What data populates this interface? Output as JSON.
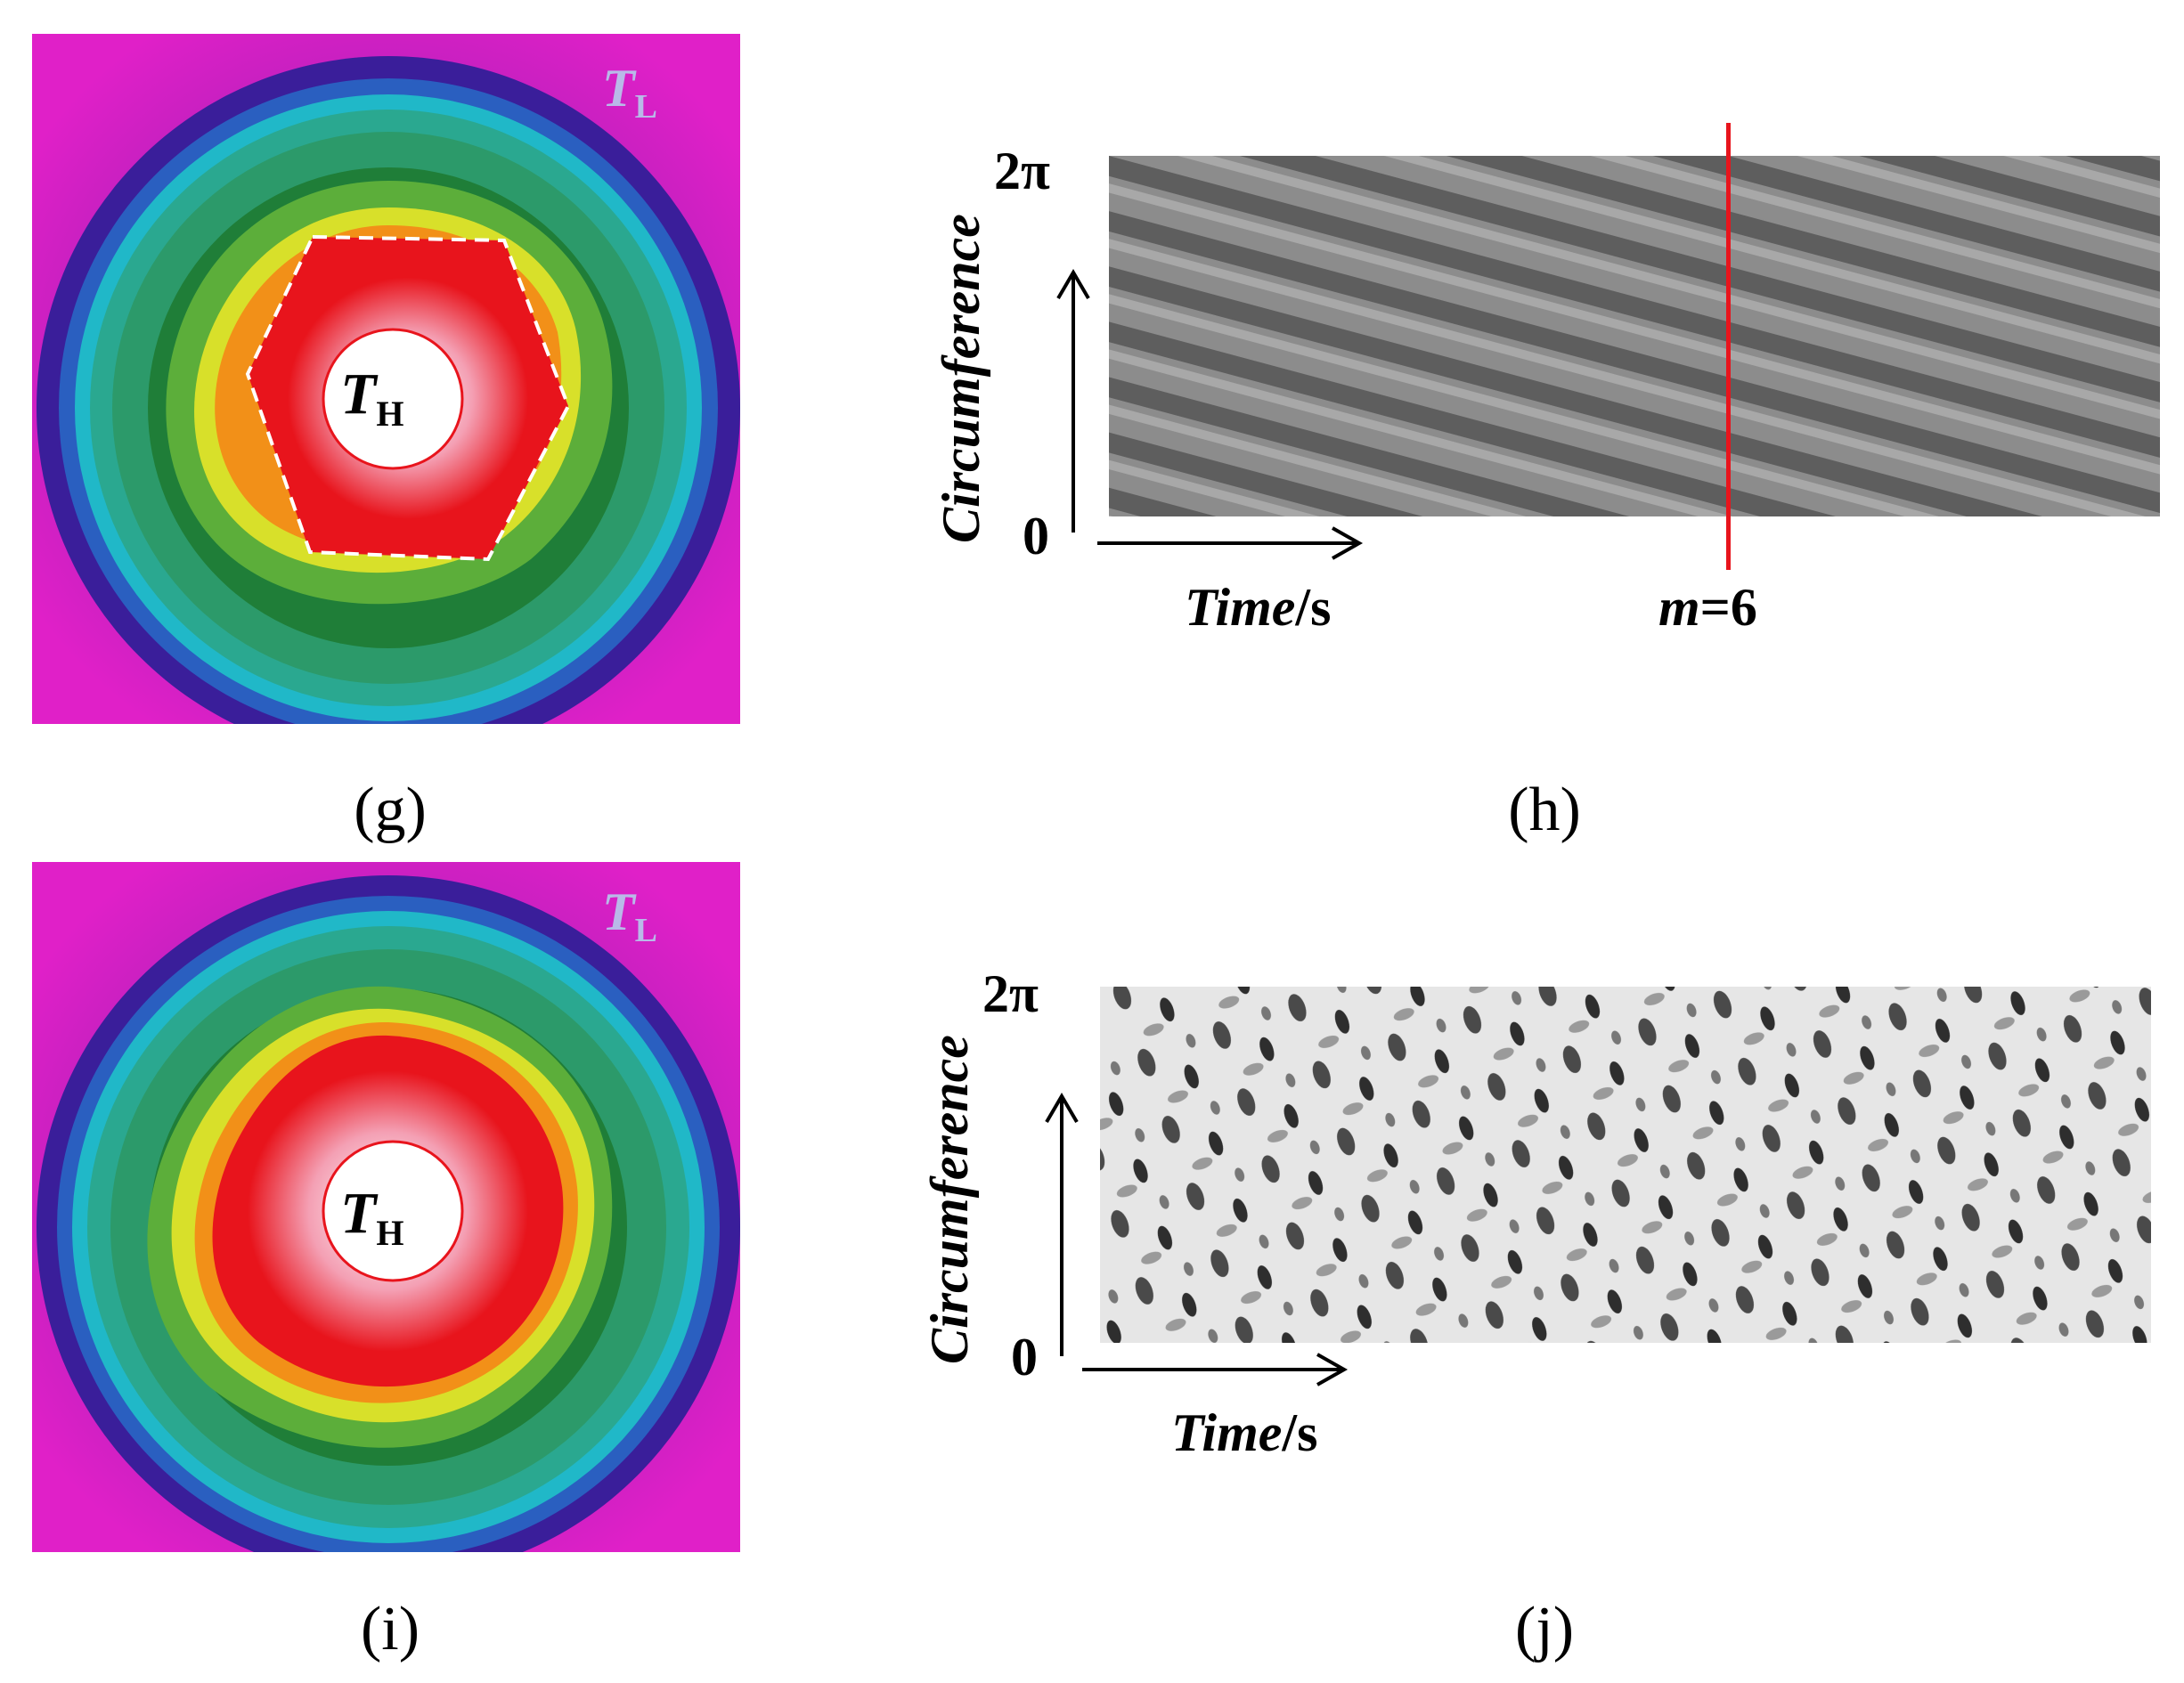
{
  "panels": {
    "g": {
      "caption": "(g)",
      "t_low": "T",
      "t_low_sub": "L",
      "t_high": "T",
      "t_high_sub": "H"
    },
    "h": {
      "caption": "(h)",
      "y_top": "2π",
      "y_bottom": "0",
      "y_label": "Circumference",
      "x_label_italic": "Time",
      "x_label_unit": "/s",
      "marker_italic": "m",
      "marker_value": "=6"
    },
    "i": {
      "caption": "(i)",
      "t_low": "T",
      "t_low_sub": "L",
      "t_high": "T",
      "t_high_sub": "H"
    },
    "j": {
      "caption": "(j)",
      "y_top": "2π",
      "y_bottom": "0",
      "y_label": "Circumference",
      "x_label_italic": "Time",
      "x_label_unit": "/s"
    }
  },
  "colors": {
    "marker_line": "#e8141c",
    "hot": "#e8141c",
    "warm": "#f7e400",
    "mid": "#1f8a3a",
    "cool": "#19b8c8",
    "cold": "#7a1fa8",
    "edge": "#e020c8"
  }
}
